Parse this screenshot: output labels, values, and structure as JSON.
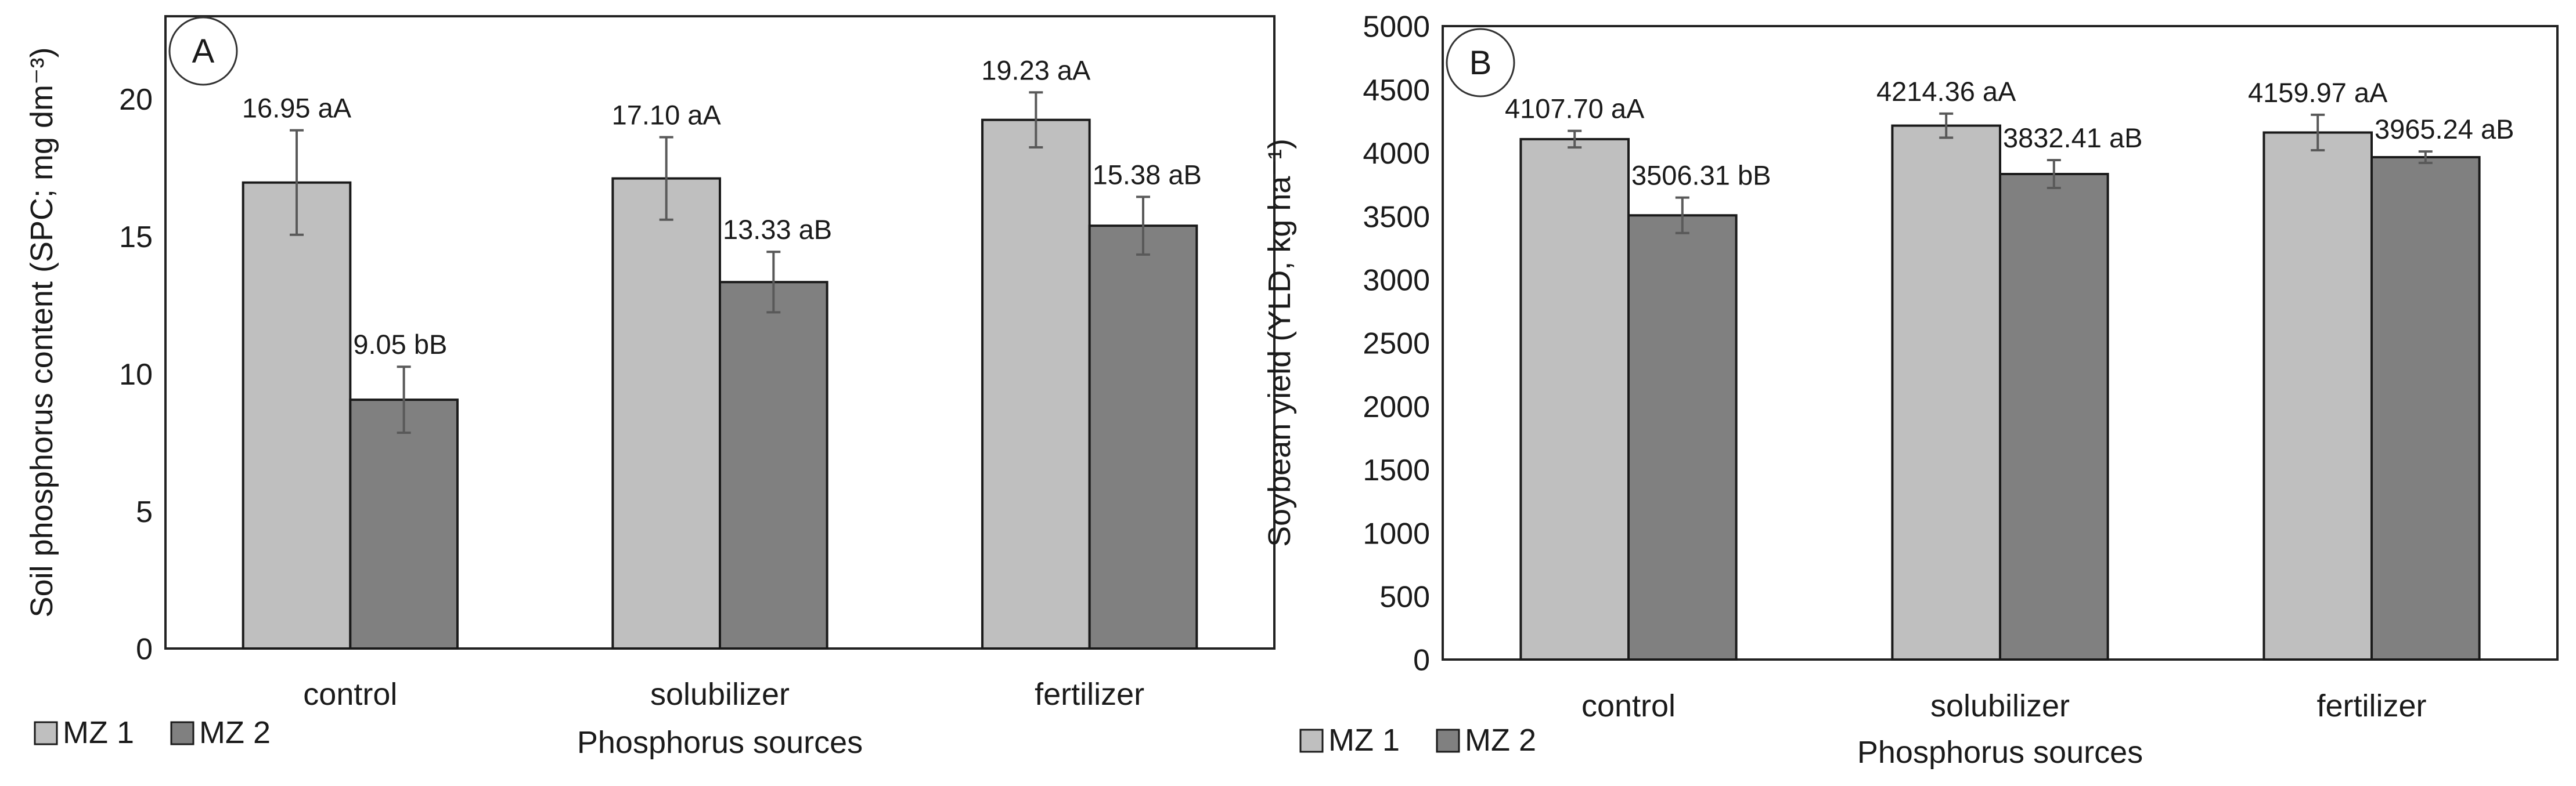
{
  "colors": {
    "mz1": "#bfbfbf",
    "mz2": "#808080",
    "error_bar": "#595959",
    "frame": "#222222"
  },
  "chart_data": [
    {
      "panel": "A",
      "type": "bar",
      "categories": [
        "control",
        "solubilizer",
        "fertilizer"
      ],
      "xlabel": "Phosphorus sources",
      "ylabel": "Soil phosphorus content (SPC; mg dm⁻³)",
      "ylim": [
        0,
        23
      ],
      "yticks": [
        0,
        5,
        10,
        15,
        20
      ],
      "series": [
        {
          "name": "MZ 1",
          "color": "#bfbfbf",
          "values": [
            16.95,
            17.1,
            19.23
          ],
          "errors": [
            1.9,
            1.5,
            1.0
          ],
          "labels": [
            "16.95 aA",
            "17.10 aA",
            "19.23 aA"
          ]
        },
        {
          "name": "MZ 2",
          "color": "#808080",
          "values": [
            9.05,
            13.33,
            15.38
          ],
          "errors": [
            1.2,
            1.1,
            1.05
          ],
          "labels": [
            "9.05 bB",
            "13.33 aB",
            "15.38 aB"
          ]
        }
      ]
    },
    {
      "panel": "B",
      "type": "bar",
      "categories": [
        "control",
        "solubilizer",
        "fertilizer"
      ],
      "xlabel": "Phosphorus sources",
      "ylabel": "Soybean yield (YLD, kg ha⁻¹)",
      "ylim": [
        0,
        5000
      ],
      "yticks": [
        0,
        500,
        1000,
        1500,
        2000,
        2500,
        3000,
        3500,
        4000,
        4500,
        5000
      ],
      "series": [
        {
          "name": "MZ 1",
          "color": "#bfbfbf",
          "values": [
            4107.7,
            4214.36,
            4159.97
          ],
          "errors": [
            65,
            95,
            140
          ],
          "labels": [
            "4107.70 aA",
            "4214.36 aA",
            "4159.97 aA"
          ]
        },
        {
          "name": "MZ 2",
          "color": "#808080",
          "values": [
            3506.31,
            3832.41,
            3965.24
          ],
          "errors": [
            140,
            110,
            45
          ],
          "labels": [
            "3506.31 bB",
            "3832.41 aB",
            "3965.24 aB"
          ]
        }
      ]
    }
  ]
}
